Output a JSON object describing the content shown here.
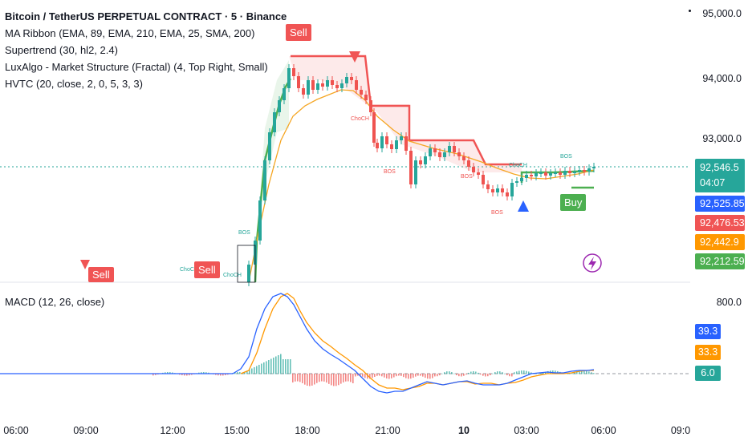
{
  "legend": {
    "title": "Bitcoin / TetherUS PERPETUAL CONTRACT · 5 · Binance",
    "indicators": [
      "MA Ribbon (EMA, 89, EMA, 210, EMA, 25, SMA, 200)",
      "Supertrend (30, hl2, 2.4)",
      "LuxAlgo - Market Structure (Fractal) (4, Top Right, Small)",
      "HVTC (20, close, 2, 0, 5, 3, 3)"
    ],
    "macd": "MACD (12, 26, close)"
  },
  "price_scale": {
    "ticks": [
      "95,000.0",
      "94,000.0",
      "93,000.0"
    ],
    "macd_tick": "800.0"
  },
  "badges": {
    "last_price": "92,546.5",
    "countdown": "04:07",
    "b1": "92,525.85",
    "b2": "92,476.53",
    "b3": "92,442.9",
    "b4": "92,212.59"
  },
  "macd_badges": {
    "m1": "39.3",
    "m2": "33.3",
    "m3": "6.0"
  },
  "time_axis": [
    "06:00",
    "09:00",
    "12:00",
    "15:00",
    "18:00",
    "21:00",
    "10",
    "03:00",
    "06:00",
    "09:0"
  ],
  "signals": {
    "sell_1": "Sell",
    "sell_2": "Sell",
    "sell_3": "Sell",
    "buy_1": "Buy"
  },
  "structure_labels": {
    "bos_1": "BOS",
    "choch_1": "ChoCH",
    "choch_2": "ChoCH",
    "choch_3": "ChoCH",
    "bos_2": "BOS",
    "bos_3": "BOS",
    "bos_4": "BOS",
    "bos_5": "BOS"
  },
  "colors": {
    "bull": "#26a69a",
    "bear": "#ef5350",
    "supertrend_up": "#4caf50",
    "supertrend_down": "#f05454",
    "ema": "#f5a623",
    "macd": "#2962ff",
    "signal": "#ff9800",
    "badge_blue": "#2962ff",
    "badge_red": "#f05454",
    "badge_orange": "#ff9800",
    "badge_green": "#4caf50",
    "badge_teal": "#26a69a"
  }
}
